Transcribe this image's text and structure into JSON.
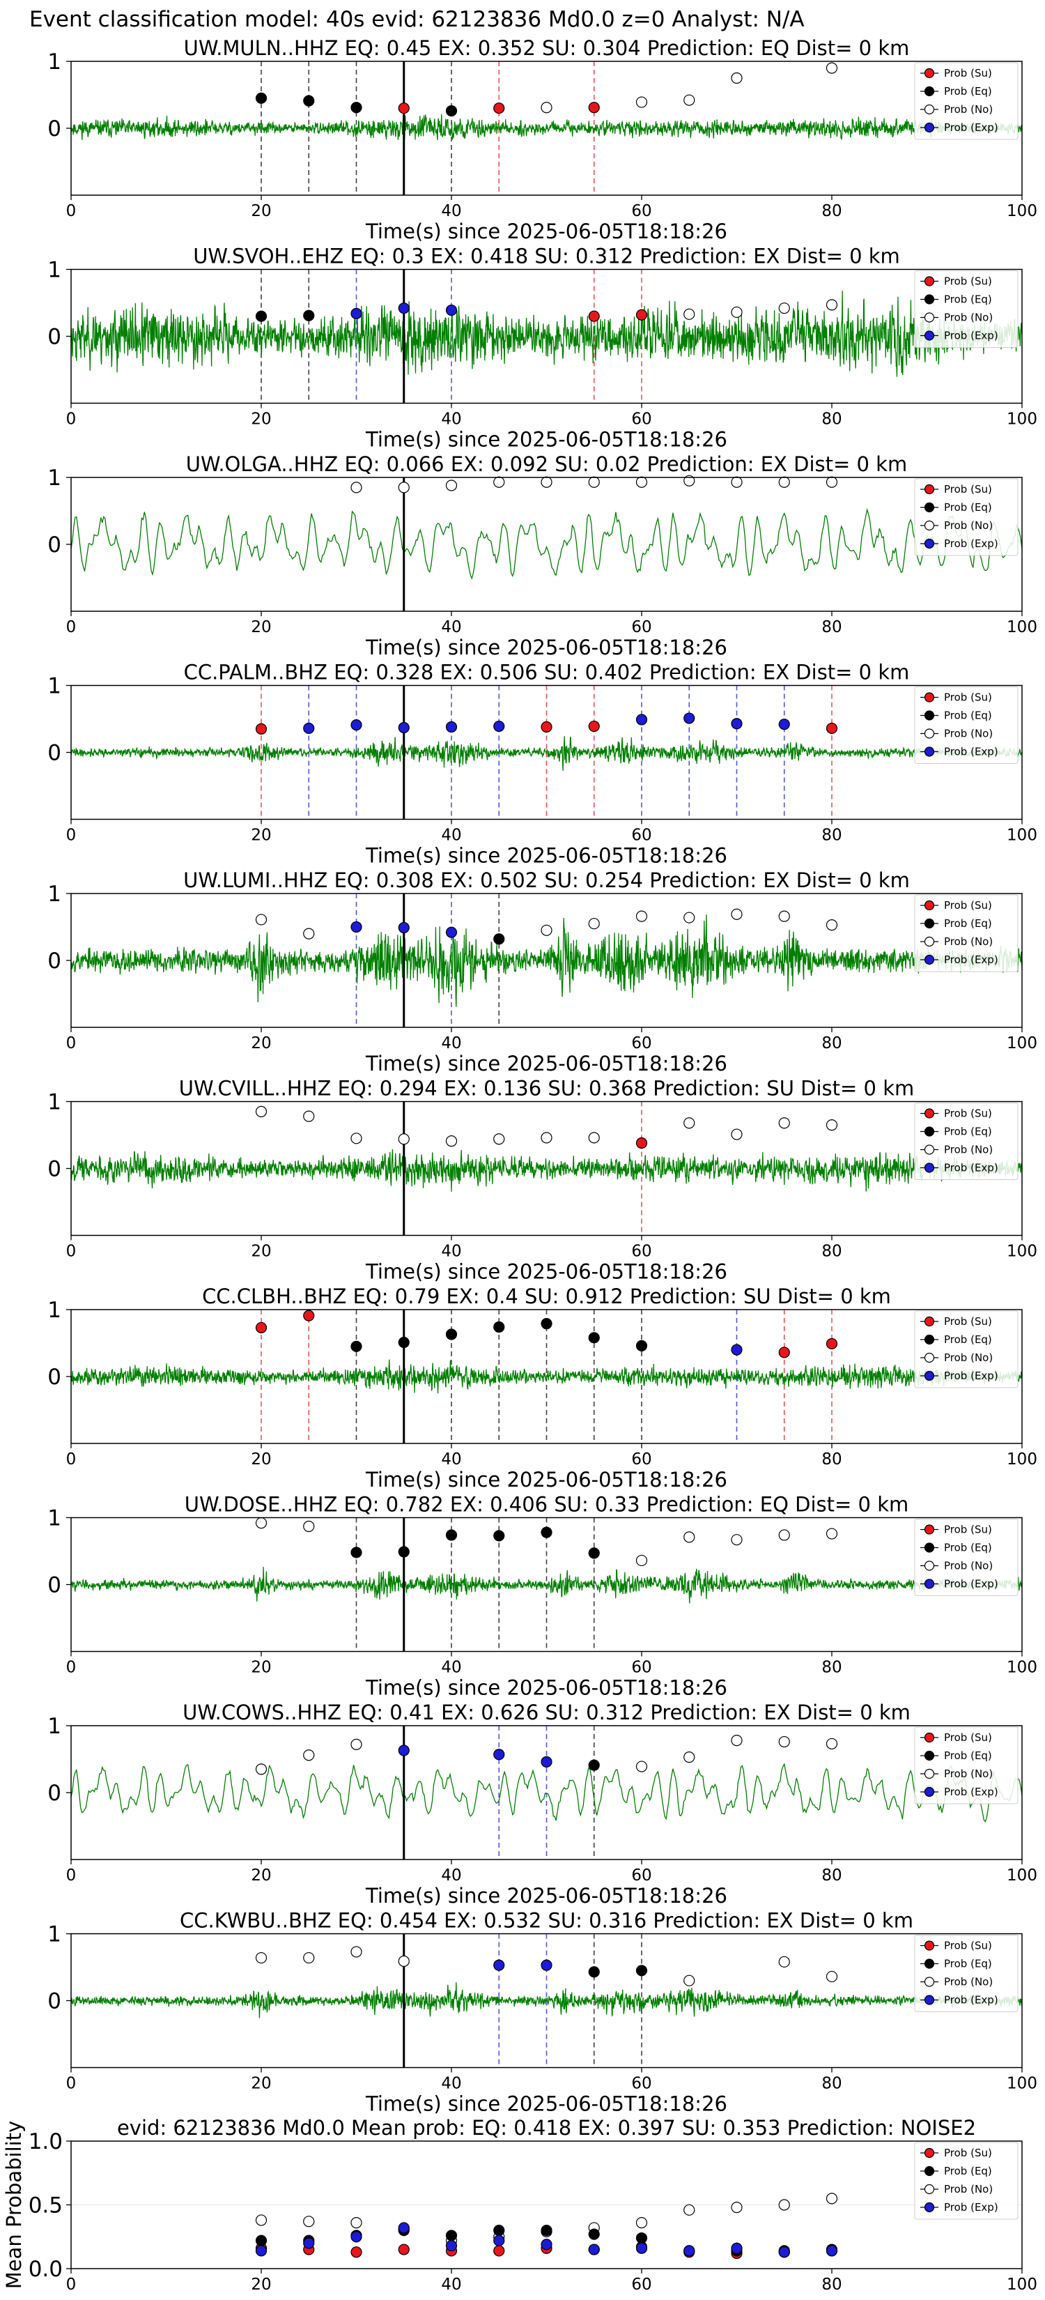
{
  "suptitle": "Event classification model: 40s evid: 62123836 Md0.0 z=0 Analyst: N/A",
  "legend_entries": [
    "Prob (Su)",
    "Prob (Eq)",
    "Prob (No)",
    "Prob (Exp)"
  ],
  "colors": {
    "trace": "#008000",
    "su": "#e8161b",
    "eq": "#000000",
    "no": "#ffffff",
    "exp": "#1c1cd6",
    "tw_line": "#000000"
  },
  "chart_data": [
    {
      "type": "line",
      "title": "UW.MULN..HHZ   EQ: 0.45  EX: 0.352  SU: 0.304   Prediction: EQ    Dist= 0 km",
      "xlabel": "Time(s) since 2025-06-05T18:18:26",
      "xlim": [
        0,
        100
      ],
      "ylim": [
        -1,
        1
      ],
      "xticks": [
        "0",
        "20",
        "40",
        "60",
        "80",
        "100"
      ],
      "yticks": [
        "0",
        "1"
      ],
      "trace_amplitude": 0.22,
      "trace_seed": 11,
      "trace_style": "broadband",
      "pick_time": 35,
      "points": [
        {
          "t": 20,
          "p": 0.45,
          "c": "eq"
        },
        {
          "t": 25,
          "p": 0.41,
          "c": "eq"
        },
        {
          "t": 30,
          "p": 0.31,
          "c": "eq"
        },
        {
          "t": 35,
          "p": 0.3,
          "c": "su"
        },
        {
          "t": 40,
          "p": 0.26,
          "c": "eq"
        },
        {
          "t": 45,
          "p": 0.3,
          "c": "su"
        },
        {
          "t": 50,
          "p": 0.31,
          "c": "no"
        },
        {
          "t": 55,
          "p": 0.31,
          "c": "su"
        },
        {
          "t": 60,
          "p": 0.39,
          "c": "no"
        },
        {
          "t": 65,
          "p": 0.42,
          "c": "no"
        },
        {
          "t": 70,
          "p": 0.75,
          "c": "no"
        },
        {
          "t": 80,
          "p": 0.9,
          "c": "no"
        }
      ]
    },
    {
      "type": "line",
      "title": "UW.SVOH..EHZ   EQ: 0.3  EX: 0.418  SU: 0.312   Prediction: EX    Dist= 0 km",
      "xlabel": "Time(s) since 2025-06-05T18:18:26",
      "xlim": [
        0,
        100
      ],
      "ylim": [
        -1,
        1
      ],
      "xticks": [
        "0",
        "20",
        "40",
        "60",
        "80",
        "100"
      ],
      "yticks": [
        "0",
        "1"
      ],
      "trace_amplitude": 0.7,
      "trace_seed": 23,
      "trace_style": "broadband",
      "pick_time": 35,
      "points": [
        {
          "t": 20,
          "p": 0.3,
          "c": "eq"
        },
        {
          "t": 25,
          "p": 0.31,
          "c": "eq"
        },
        {
          "t": 30,
          "p": 0.34,
          "c": "exp"
        },
        {
          "t": 35,
          "p": 0.42,
          "c": "exp"
        },
        {
          "t": 40,
          "p": 0.39,
          "c": "exp"
        },
        {
          "t": 55,
          "p": 0.3,
          "c": "su"
        },
        {
          "t": 60,
          "p": 0.32,
          "c": "su"
        },
        {
          "t": 65,
          "p": 0.33,
          "c": "no"
        },
        {
          "t": 70,
          "p": 0.36,
          "c": "no"
        },
        {
          "t": 75,
          "p": 0.42,
          "c": "no"
        },
        {
          "t": 80,
          "p": 0.47,
          "c": "no"
        }
      ]
    },
    {
      "type": "line",
      "title": "UW.OLGA..HHZ   EQ: 0.066  EX: 0.092  SU: 0.02   Prediction: EX    Dist= 0 km",
      "xlabel": "Time(s) since 2025-06-05T18:18:26",
      "xlim": [
        0,
        100
      ],
      "ylim": [
        -1,
        1
      ],
      "xticks": [
        "0",
        "20",
        "40",
        "60",
        "80",
        "100"
      ],
      "yticks": [
        "0",
        "1"
      ],
      "trace_amplitude": 0.55,
      "trace_seed": 37,
      "trace_style": "smooth",
      "pick_time": 35,
      "points": [
        {
          "t": 30,
          "p": 0.85,
          "c": "no"
        },
        {
          "t": 35,
          "p": 0.85,
          "c": "no"
        },
        {
          "t": 40,
          "p": 0.88,
          "c": "no"
        },
        {
          "t": 45,
          "p": 0.93,
          "c": "no"
        },
        {
          "t": 50,
          "p": 0.93,
          "c": "no"
        },
        {
          "t": 55,
          "p": 0.93,
          "c": "no"
        },
        {
          "t": 60,
          "p": 0.93,
          "c": "no"
        },
        {
          "t": 65,
          "p": 0.95,
          "c": "no"
        },
        {
          "t": 70,
          "p": 0.93,
          "c": "no"
        },
        {
          "t": 75,
          "p": 0.93,
          "c": "no"
        },
        {
          "t": 80,
          "p": 0.93,
          "c": "no"
        }
      ]
    },
    {
      "type": "line",
      "title": "CC.PALM..BHZ   EQ: 0.328  EX: 0.506  SU: 0.402   Prediction: EX    Dist= 0 km",
      "xlabel": "Time(s) since 2025-06-05T18:18:26",
      "xlim": [
        0,
        100
      ],
      "ylim": [
        -1,
        1
      ],
      "xticks": [
        "0",
        "20",
        "40",
        "60",
        "80",
        "100"
      ],
      "yticks": [
        "0",
        "1"
      ],
      "trace_amplitude": 0.18,
      "trace_seed": 41,
      "trace_style": "bursty",
      "pick_time": 35,
      "points": [
        {
          "t": 20,
          "p": 0.35,
          "c": "su"
        },
        {
          "t": 25,
          "p": 0.36,
          "c": "exp"
        },
        {
          "t": 30,
          "p": 0.41,
          "c": "exp"
        },
        {
          "t": 35,
          "p": 0.37,
          "c": "exp"
        },
        {
          "t": 40,
          "p": 0.38,
          "c": "exp"
        },
        {
          "t": 45,
          "p": 0.39,
          "c": "exp"
        },
        {
          "t": 50,
          "p": 0.38,
          "c": "su"
        },
        {
          "t": 55,
          "p": 0.39,
          "c": "su"
        },
        {
          "t": 60,
          "p": 0.49,
          "c": "exp"
        },
        {
          "t": 65,
          "p": 0.51,
          "c": "exp"
        },
        {
          "t": 70,
          "p": 0.43,
          "c": "exp"
        },
        {
          "t": 75,
          "p": 0.42,
          "c": "exp"
        },
        {
          "t": 80,
          "p": 0.36,
          "c": "su"
        }
      ]
    },
    {
      "type": "line",
      "title": "UW.LUMI..HHZ   EQ: 0.308  EX: 0.502  SU: 0.254   Prediction: EX    Dist= 0 km",
      "xlabel": "Time(s) since 2025-06-05T18:18:26",
      "xlim": [
        0,
        100
      ],
      "ylim": [
        -1,
        1
      ],
      "xticks": [
        "0",
        "20",
        "40",
        "60",
        "80",
        "100"
      ],
      "yticks": [
        "0",
        "1"
      ],
      "trace_amplitude": 0.5,
      "trace_seed": 53,
      "trace_style": "bursty",
      "pick_time": 35,
      "points": [
        {
          "t": 20,
          "p": 0.61,
          "c": "no"
        },
        {
          "t": 25,
          "p": 0.4,
          "c": "no"
        },
        {
          "t": 30,
          "p": 0.5,
          "c": "exp"
        },
        {
          "t": 35,
          "p": 0.49,
          "c": "exp"
        },
        {
          "t": 40,
          "p": 0.42,
          "c": "exp"
        },
        {
          "t": 45,
          "p": 0.32,
          "c": "eq"
        },
        {
          "t": 50,
          "p": 0.45,
          "c": "no"
        },
        {
          "t": 55,
          "p": 0.55,
          "c": "no"
        },
        {
          "t": 60,
          "p": 0.66,
          "c": "no"
        },
        {
          "t": 65,
          "p": 0.64,
          "c": "no"
        },
        {
          "t": 70,
          "p": 0.69,
          "c": "no"
        },
        {
          "t": 75,
          "p": 0.66,
          "c": "no"
        },
        {
          "t": 80,
          "p": 0.53,
          "c": "no"
        }
      ]
    },
    {
      "type": "line",
      "title": "UW.CVILL..HHZ   EQ: 0.294  EX: 0.136  SU: 0.368   Prediction: SU    Dist= 0 km",
      "xlabel": "Time(s) since 2025-06-05T18:18:26",
      "xlim": [
        0,
        100
      ],
      "ylim": [
        -1,
        1
      ],
      "xticks": [
        "0",
        "20",
        "40",
        "60",
        "80",
        "100"
      ],
      "yticks": [
        "0",
        "1"
      ],
      "trace_amplitude": 0.35,
      "trace_seed": 67,
      "trace_style": "broadband",
      "pick_time": 35,
      "points": [
        {
          "t": 20,
          "p": 0.85,
          "c": "no"
        },
        {
          "t": 25,
          "p": 0.78,
          "c": "no"
        },
        {
          "t": 30,
          "p": 0.45,
          "c": "no"
        },
        {
          "t": 35,
          "p": 0.44,
          "c": "no"
        },
        {
          "t": 40,
          "p": 0.41,
          "c": "no"
        },
        {
          "t": 45,
          "p": 0.44,
          "c": "no"
        },
        {
          "t": 50,
          "p": 0.46,
          "c": "no"
        },
        {
          "t": 55,
          "p": 0.46,
          "c": "no"
        },
        {
          "t": 60,
          "p": 0.38,
          "c": "su"
        },
        {
          "t": 65,
          "p": 0.68,
          "c": "no"
        },
        {
          "t": 70,
          "p": 0.51,
          "c": "no"
        },
        {
          "t": 75,
          "p": 0.68,
          "c": "no"
        },
        {
          "t": 80,
          "p": 0.65,
          "c": "no"
        }
      ]
    },
    {
      "type": "line",
      "title": "CC.CLBH..BHZ   EQ: 0.79  EX: 0.4  SU: 0.912   Prediction: SU    Dist= 0 km",
      "xlabel": "Time(s) since 2025-06-05T18:18:26",
      "xlim": [
        0,
        100
      ],
      "ylim": [
        -1,
        1
      ],
      "xticks": [
        "0",
        "20",
        "40",
        "60",
        "80",
        "100"
      ],
      "yticks": [
        "0",
        "1"
      ],
      "trace_amplitude": 0.25,
      "trace_seed": 79,
      "trace_style": "broadband",
      "pick_time": 35,
      "points": [
        {
          "t": 20,
          "p": 0.73,
          "c": "su"
        },
        {
          "t": 25,
          "p": 0.91,
          "c": "su"
        },
        {
          "t": 30,
          "p": 0.45,
          "c": "eq"
        },
        {
          "t": 35,
          "p": 0.51,
          "c": "eq"
        },
        {
          "t": 40,
          "p": 0.63,
          "c": "eq"
        },
        {
          "t": 45,
          "p": 0.74,
          "c": "eq"
        },
        {
          "t": 50,
          "p": 0.79,
          "c": "eq"
        },
        {
          "t": 55,
          "p": 0.58,
          "c": "eq"
        },
        {
          "t": 60,
          "p": 0.46,
          "c": "eq"
        },
        {
          "t": 70,
          "p": 0.4,
          "c": "exp"
        },
        {
          "t": 75,
          "p": 0.36,
          "c": "su"
        },
        {
          "t": 80,
          "p": 0.49,
          "c": "su"
        }
      ]
    },
    {
      "type": "line",
      "title": "UW.DOSE..HHZ   EQ: 0.782  EX: 0.406  SU: 0.33   Prediction: EQ    Dist= 0 km",
      "xlabel": "Time(s) since 2025-06-05T18:18:26",
      "xlim": [
        0,
        100
      ],
      "ylim": [
        -1,
        1
      ],
      "xticks": [
        "0",
        "20",
        "40",
        "60",
        "80",
        "100"
      ],
      "yticks": [
        "0",
        "1"
      ],
      "trace_amplitude": 0.2,
      "trace_seed": 83,
      "trace_style": "bursty",
      "pick_time": 35,
      "points": [
        {
          "t": 20,
          "p": 0.92,
          "c": "no"
        },
        {
          "t": 25,
          "p": 0.87,
          "c": "no"
        },
        {
          "t": 30,
          "p": 0.48,
          "c": "eq"
        },
        {
          "t": 35,
          "p": 0.49,
          "c": "eq"
        },
        {
          "t": 40,
          "p": 0.74,
          "c": "eq"
        },
        {
          "t": 45,
          "p": 0.73,
          "c": "eq"
        },
        {
          "t": 50,
          "p": 0.78,
          "c": "eq"
        },
        {
          "t": 55,
          "p": 0.47,
          "c": "eq"
        },
        {
          "t": 60,
          "p": 0.36,
          "c": "no"
        },
        {
          "t": 65,
          "p": 0.71,
          "c": "no"
        },
        {
          "t": 70,
          "p": 0.67,
          "c": "no"
        },
        {
          "t": 75,
          "p": 0.74,
          "c": "no"
        },
        {
          "t": 80,
          "p": 0.76,
          "c": "no"
        }
      ]
    },
    {
      "type": "line",
      "title": "UW.COWS..HHZ   EQ: 0.41  EX: 0.626  SU: 0.312   Prediction: EX    Dist= 0 km",
      "xlabel": "Time(s) since 2025-06-05T18:18:26",
      "xlim": [
        0,
        100
      ],
      "ylim": [
        -1,
        1
      ],
      "xticks": [
        "0",
        "20",
        "40",
        "60",
        "80",
        "100"
      ],
      "yticks": [
        "0",
        "1"
      ],
      "trace_amplitude": 0.45,
      "trace_seed": 97,
      "trace_style": "smooth",
      "pick_time": 35,
      "points": [
        {
          "t": 20,
          "p": 0.35,
          "c": "no"
        },
        {
          "t": 25,
          "p": 0.56,
          "c": "no"
        },
        {
          "t": 30,
          "p": 0.72,
          "c": "no"
        },
        {
          "t": 35,
          "p": 0.63,
          "c": "exp"
        },
        {
          "t": 45,
          "p": 0.57,
          "c": "exp"
        },
        {
          "t": 50,
          "p": 0.46,
          "c": "exp"
        },
        {
          "t": 55,
          "p": 0.41,
          "c": "eq"
        },
        {
          "t": 60,
          "p": 0.39,
          "c": "no"
        },
        {
          "t": 65,
          "p": 0.53,
          "c": "no"
        },
        {
          "t": 70,
          "p": 0.78,
          "c": "no"
        },
        {
          "t": 75,
          "p": 0.76,
          "c": "no"
        },
        {
          "t": 80,
          "p": 0.73,
          "c": "no"
        }
      ]
    },
    {
      "type": "line",
      "title": "CC.KWBU..BHZ   EQ: 0.454  EX: 0.532  SU: 0.316   Prediction: EX    Dist= 0 km",
      "xlabel": "Time(s) since 2025-06-05T18:18:26",
      "xlim": [
        0,
        100
      ],
      "ylim": [
        -1,
        1
      ],
      "xticks": [
        "0",
        "20",
        "40",
        "60",
        "80",
        "100"
      ],
      "yticks": [
        "0",
        "1"
      ],
      "trace_amplitude": 0.2,
      "trace_seed": 101,
      "trace_style": "bursty",
      "pick_time": 35,
      "points": [
        {
          "t": 20,
          "p": 0.64,
          "c": "no"
        },
        {
          "t": 25,
          "p": 0.64,
          "c": "no"
        },
        {
          "t": 30,
          "p": 0.73,
          "c": "no"
        },
        {
          "t": 35,
          "p": 0.59,
          "c": "no"
        },
        {
          "t": 45,
          "p": 0.53,
          "c": "exp"
        },
        {
          "t": 50,
          "p": 0.53,
          "c": "exp"
        },
        {
          "t": 55,
          "p": 0.43,
          "c": "eq"
        },
        {
          "t": 60,
          "p": 0.45,
          "c": "eq"
        },
        {
          "t": 65,
          "p": 0.3,
          "c": "no"
        },
        {
          "t": 75,
          "p": 0.58,
          "c": "no"
        },
        {
          "t": 80,
          "p": 0.36,
          "c": "no"
        }
      ]
    },
    {
      "type": "scatter",
      "title": "evid: 62123836  Md0.0   Mean prob:   EQ: 0.418  EX: 0.397  SU: 0.353   Prediction: NOISE2",
      "ylabel": "Mean Probability",
      "xlim": [
        0,
        100
      ],
      "ylim": [
        0,
        1
      ],
      "xticks": [
        "0",
        "20",
        "40",
        "60",
        "80",
        "100"
      ],
      "yticks": [
        "0.0",
        "0.5",
        "1.0"
      ],
      "x": [
        20,
        25,
        30,
        35,
        40,
        45,
        50,
        55,
        60,
        65,
        70,
        75,
        80
      ],
      "series": [
        {
          "key": "no",
          "values": [
            0.38,
            0.37,
            0.36,
            0.31,
            0.22,
            0.25,
            0.29,
            0.32,
            0.36,
            0.46,
            0.48,
            0.5,
            0.55
          ]
        },
        {
          "key": "su",
          "values": [
            0.16,
            0.15,
            0.13,
            0.15,
            0.14,
            0.14,
            0.16,
            0.15,
            0.17,
            0.13,
            0.12,
            0.13,
            0.14
          ]
        },
        {
          "key": "eq",
          "values": [
            0.22,
            0.22,
            0.26,
            0.3,
            0.26,
            0.3,
            0.3,
            0.27,
            0.24,
            0.14,
            0.14,
            0.14,
            0.15
          ]
        },
        {
          "key": "exp",
          "values": [
            0.14,
            0.2,
            0.25,
            0.32,
            0.18,
            0.22,
            0.19,
            0.15,
            0.16,
            0.14,
            0.16,
            0.13,
            0.14
          ]
        }
      ]
    }
  ]
}
